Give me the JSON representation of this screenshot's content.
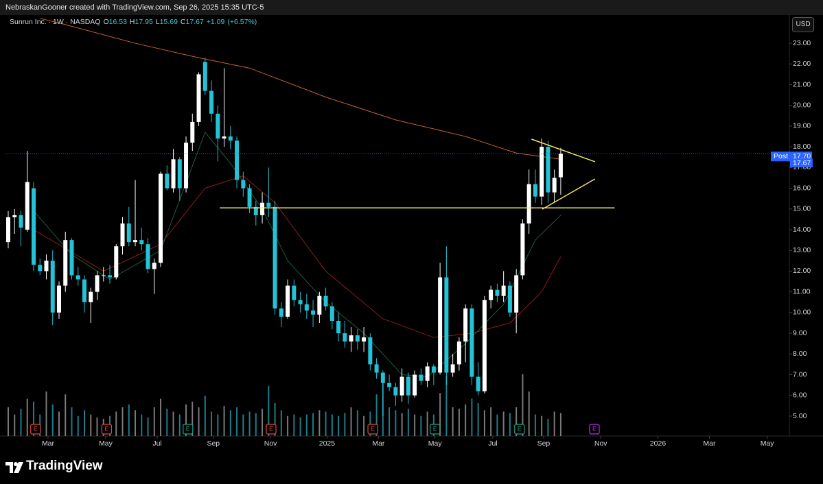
{
  "header": {
    "attribution": "NebraskanGooner created with TradingView.com, Sep 26, 2025 15:35 UTC-5",
    "symbol": "Sunrun Inc. · 1W · NASDAQ",
    "ohlc": [
      {
        "key": "O",
        "value": 16.53
      },
      {
        "key": "H",
        "value": 17.95
      },
      {
        "key": "L",
        "value": 15.69
      },
      {
        "key": "C",
        "value": 17.67
      }
    ],
    "change": "+1.09",
    "change_pct": "(+6.57%)",
    "currency": "USD"
  },
  "footer": {
    "brand": "TradingView"
  },
  "chart_data": {
    "type": "candlestick",
    "up_color": "#ffffff",
    "down_color": "#22c3d6",
    "x": [
      0,
      1,
      2,
      3,
      4,
      5,
      6,
      7,
      8,
      9,
      10,
      11,
      12,
      13,
      14,
      15,
      16,
      17,
      18,
      19,
      20,
      21,
      22,
      23,
      24,
      25,
      26,
      27,
      28,
      29,
      30,
      31,
      32,
      33,
      34,
      35,
      36,
      37,
      38,
      39,
      40,
      41,
      42,
      43,
      44,
      45,
      46,
      47,
      48,
      49,
      50,
      51,
      52,
      53,
      54,
      55,
      56,
      57,
      58,
      59,
      60,
      61,
      62,
      63,
      64,
      65,
      66,
      67,
      68,
      69,
      70,
      71,
      72,
      73,
      74,
      75,
      76,
      77,
      78,
      79,
      80,
      81,
      82,
      83,
      84,
      85,
      86,
      87
    ],
    "open": [
      13.4,
      14.6,
      14.7,
      14.0,
      16.0,
      12.3,
      12.0,
      12.5,
      10.0,
      11.3,
      13.5,
      11.8,
      11.6,
      10.5,
      11.0,
      11.8,
      11.8,
      11.7,
      13.2,
      14.3,
      13.4,
      13.5,
      13.3,
      12.1,
      12.4,
      16.7,
      16.0,
      17.4,
      16.0,
      18.2,
      19.2,
      22.1,
      20.7,
      19.6,
      18.4,
      18.5,
      18.3,
      16.4,
      16.0,
      15.1,
      14.7,
      15.3,
      15.1,
      10.2,
      9.8,
      11.3,
      10.6,
      10.4,
      10.1,
      9.9,
      10.8,
      10.3,
      9.6,
      9.0,
      8.6,
      8.9,
      8.6,
      8.8,
      7.5,
      7.1,
      6.6,
      6.4,
      6.0,
      6.9,
      6.0,
      7.0,
      6.7,
      7.4,
      7.1,
      11.7,
      7.1,
      7.5,
      8.6,
      10.2,
      6.9,
      6.2,
      10.6,
      11.1,
      10.8,
      11.3,
      10.0,
      11.8,
      14.3,
      16.2,
      15.6,
      18.0,
      15.8,
      16.53
    ],
    "high": [
      14.9,
      15.0,
      14.9,
      17.8,
      16.3,
      12.6,
      12.8,
      13.0,
      11.5,
      13.9,
      13.6,
      12.2,
      11.8,
      11.2,
      12.0,
      12.2,
      12.3,
      13.3,
      14.6,
      15.1,
      16.4,
      14.1,
      13.6,
      12.6,
      16.8,
      17.1,
      17.9,
      17.5,
      18.5,
      19.6,
      21.6,
      22.3,
      21.2,
      20.0,
      21.8,
      19.0,
      18.5,
      16.8,
      16.2,
      15.4,
      15.8,
      17.0,
      15.4,
      10.5,
      11.6,
      11.6,
      11.0,
      10.9,
      10.6,
      11.0,
      11.2,
      10.5,
      10.0,
      9.6,
      9.3,
      9.2,
      9.3,
      9.0,
      7.8,
      7.2,
      7.0,
      6.6,
      7.3,
      7.1,
      7.2,
      7.3,
      7.6,
      7.5,
      12.4,
      13.2,
      8.0,
      8.8,
      10.4,
      10.4,
      7.6,
      10.8,
      11.3,
      11.4,
      12.0,
      11.5,
      12.1,
      14.5,
      16.9,
      16.9,
      18.4,
      18.3,
      16.9,
      17.95
    ],
    "low": [
      13.1,
      13.8,
      13.2,
      13.9,
      12.0,
      11.8,
      11.6,
      9.4,
      9.7,
      11.0,
      11.6,
      11.3,
      10.0,
      9.5,
      10.6,
      11.5,
      11.4,
      11.6,
      12.8,
      13.2,
      13.2,
      13.0,
      11.9,
      10.9,
      12.2,
      15.9,
      15.8,
      15.4,
      15.8,
      17.8,
      19.0,
      20.5,
      19.2,
      17.3,
      18.0,
      17.9,
      16.0,
      15.6,
      14.8,
      14.2,
      14.3,
      14.6,
      9.9,
      9.3,
      9.7,
      10.3,
      10.0,
      9.7,
      9.3,
      9.5,
      10.1,
      9.2,
      8.6,
      8.3,
      8.1,
      8.2,
      8.1,
      7.2,
      6.8,
      5.0,
      6.2,
      5.5,
      5.7,
      5.6,
      5.9,
      6.5,
      6.4,
      6.5,
      7.0,
      6.5,
      6.9,
      7.2,
      7.6,
      6.5,
      6.0,
      6.1,
      10.2,
      10.5,
      10.5,
      9.8,
      9.0,
      11.6,
      13.8,
      15.3,
      15.2,
      15.3,
      15.3,
      15.69
    ],
    "close": [
      14.6,
      14.7,
      14.1,
      16.3,
      12.3,
      12.0,
      12.5,
      10.0,
      11.3,
      13.5,
      11.8,
      11.6,
      10.5,
      11.0,
      11.8,
      11.8,
      11.7,
      13.2,
      14.3,
      13.4,
      13.5,
      13.3,
      12.1,
      12.4,
      16.7,
      16.0,
      17.4,
      16.0,
      18.2,
      19.2,
      21.5,
      20.7,
      19.6,
      18.4,
      18.5,
      18.3,
      16.4,
      16.0,
      15.1,
      14.7,
      15.3,
      15.1,
      10.2,
      9.8,
      11.3,
      10.6,
      10.4,
      10.1,
      9.9,
      10.8,
      10.3,
      9.6,
      9.0,
      8.6,
      8.9,
      8.6,
      8.8,
      7.5,
      7.1,
      6.6,
      6.4,
      6.0,
      6.9,
      6.0,
      7.0,
      6.7,
      7.4,
      7.1,
      11.7,
      7.1,
      7.5,
      8.6,
      10.2,
      6.9,
      6.2,
      10.6,
      11.1,
      10.8,
      11.3,
      10.0,
      11.8,
      14.3,
      16.2,
      15.6,
      18.0,
      15.8,
      16.5,
      17.67
    ],
    "volume": [
      40,
      30,
      38,
      52,
      48,
      30,
      62,
      44,
      34,
      58,
      40,
      28,
      36,
      30,
      26,
      24,
      28,
      34,
      40,
      44,
      36,
      30,
      26,
      40,
      52,
      38,
      34,
      30,
      44,
      48,
      40,
      56,
      34,
      30,
      42,
      36,
      40,
      30,
      34,
      32,
      38,
      70,
      46,
      36,
      28,
      30,
      26,
      30,
      32,
      36,
      34,
      30,
      28,
      32,
      40,
      36,
      28,
      34,
      58,
      80,
      40,
      36,
      32,
      38,
      30,
      28,
      34,
      30,
      60,
      84,
      40,
      38,
      44,
      52,
      46,
      36,
      40,
      30,
      34,
      32,
      40,
      86,
      62,
      30,
      28,
      24,
      34,
      32
    ],
    "lines": [
      {
        "color": "#c8622a",
        "x": [
          5,
          9,
          20,
          30,
          38,
          50,
          61,
          72,
          80,
          87
        ],
        "values": [
          24.2,
          23.9,
          23.0,
          22.3,
          21.8,
          20.4,
          19.3,
          18.5,
          17.7,
          17.4
        ]
      },
      {
        "color": "#8e1c1c",
        "x": [
          4,
          15,
          24,
          31,
          37,
          42,
          50,
          59,
          67,
          73,
          79,
          84,
          87
        ],
        "values": [
          14.0,
          12.0,
          13.3,
          16.0,
          16.6,
          15.3,
          12.0,
          9.7,
          8.8,
          9.0,
          9.5,
          11.0,
          12.7
        ]
      },
      {
        "color": "#1d5e3a",
        "x": [
          4,
          10,
          16,
          24,
          31,
          35,
          40,
          44,
          50,
          56,
          62,
          66,
          72,
          78,
          83,
          87
        ],
        "values": [
          14.9,
          12.8,
          11.6,
          13.0,
          18.7,
          17.2,
          15.0,
          12.5,
          10.5,
          9.0,
          7.0,
          6.9,
          8.5,
          10.4,
          13.5,
          14.7
        ]
      }
    ],
    "drawings": {
      "color": "#f5e663",
      "lines": [
        {
          "x": [
            33.3,
            95.5
          ],
          "y": [
            15.05,
            15.05
          ]
        },
        {
          "x": [
            82.4,
            92.4
          ],
          "y": [
            18.37,
            17.28
          ]
        },
        {
          "x": [
            84.1,
            92.4
          ],
          "y": [
            14.99,
            16.45
          ]
        }
      ]
    },
    "earnings": [
      {
        "x": 4.3,
        "label": "E",
        "color": "#e04848"
      },
      {
        "x": 15.5,
        "label": "E",
        "color": "#e04848"
      },
      {
        "x": 28.3,
        "label": "E",
        "color": "#22a38a"
      },
      {
        "x": 41.4,
        "label": "E",
        "color": "#e04848"
      },
      {
        "x": 57.4,
        "label": "E",
        "color": "#e04848"
      },
      {
        "x": 67.2,
        "label": "E",
        "color": "#22a38a"
      },
      {
        "x": 80.5,
        "label": "E",
        "color": "#22a38a"
      },
      {
        "x": 92.3,
        "label": "E",
        "color": "#b03ad8"
      }
    ],
    "price_labels": [
      {
        "name": "Post",
        "value": 17.7,
        "label": "17.70",
        "color": "#2962ff"
      },
      {
        "value": 17.67,
        "color": "#2962ff"
      }
    ],
    "xlim": [
      -0.43,
      123.0
    ],
    "ylim": [
      4.04,
      24.26
    ],
    "xticks": [
      {
        "value": 6.27,
        "label": "Mar"
      },
      {
        "value": 15.35,
        "label": "May"
      },
      {
        "value": 23.46,
        "label": "Jul"
      },
      {
        "value": 32.3,
        "label": "Sep"
      },
      {
        "value": 41.3,
        "label": "Nov"
      },
      {
        "value": 50.2,
        "label": "2025"
      },
      {
        "value": 58.3,
        "label": "Mar"
      },
      {
        "value": 67.2,
        "label": "May"
      },
      {
        "value": 76.3,
        "label": "Jul"
      },
      {
        "value": 84.3,
        "label": "Sep"
      },
      {
        "value": 93.3,
        "label": "Nov"
      },
      {
        "value": 102.3,
        "label": "2026"
      },
      {
        "value": 110.4,
        "label": "Mar"
      },
      {
        "value": 119.5,
        "label": "May"
      }
    ],
    "yticks": [
      {
        "value": 5,
        "label": "5.00"
      },
      {
        "value": 6,
        "label": "6.00"
      },
      {
        "value": 7,
        "label": "7.00"
      },
      {
        "value": 8,
        "label": "8.00"
      },
      {
        "value": 9,
        "label": "9.00"
      },
      {
        "value": 10,
        "label": "10.00"
      },
      {
        "value": 11,
        "label": "11.00"
      },
      {
        "value": 12,
        "label": "12.00"
      },
      {
        "value": 13,
        "label": "13.00"
      },
      {
        "value": 14,
        "label": "14.00"
      },
      {
        "value": 15,
        "label": "15.00"
      },
      {
        "value": 16,
        "label": "16.00"
      },
      {
        "value": 17,
        "label": "17.00"
      },
      {
        "value": 18,
        "label": "18.00"
      },
      {
        "value": 19,
        "label": "19.00"
      },
      {
        "value": 20,
        "label": "20.00"
      },
      {
        "value": 21,
        "label": "21.00"
      },
      {
        "value": 22,
        "label": "22.00"
      },
      {
        "value": 23,
        "label": "23.00"
      }
    ]
  }
}
